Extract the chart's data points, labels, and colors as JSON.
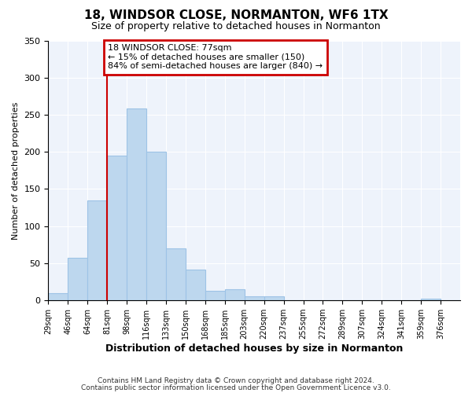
{
  "title": "18, WINDSOR CLOSE, NORMANTON, WF6 1TX",
  "subtitle": "Size of property relative to detached houses in Normanton",
  "xlabel": "Distribution of detached houses by size in Normanton",
  "ylabel": "Number of detached properties",
  "bin_labels": [
    "29sqm",
    "46sqm",
    "64sqm",
    "81sqm",
    "98sqm",
    "116sqm",
    "133sqm",
    "150sqm",
    "168sqm",
    "185sqm",
    "203sqm",
    "220sqm",
    "237sqm",
    "255sqm",
    "272sqm",
    "289sqm",
    "307sqm",
    "324sqm",
    "341sqm",
    "359sqm",
    "376sqm"
  ],
  "bar_heights": [
    10,
    57,
    135,
    195,
    258,
    200,
    70,
    41,
    13,
    15,
    6,
    5,
    0,
    0,
    0,
    0,
    0,
    0,
    0,
    2,
    0
  ],
  "bar_color": "#BDD7EE",
  "bar_edge_color": "#9DC3E6",
  "bar_edge_width": 0.8,
  "vline_position": 3,
  "vline_color": "#CC0000",
  "ylim": [
    0,
    350
  ],
  "yticks": [
    0,
    50,
    100,
    150,
    200,
    250,
    300,
    350
  ],
  "annotation_title": "18 WINDSOR CLOSE: 77sqm",
  "annotation_line1": "← 15% of detached houses are smaller (150)",
  "annotation_line2": "84% of semi-detached houses are larger (840) →",
  "annotation_box_color": "#CC0000",
  "footer_line1": "Contains HM Land Registry data © Crown copyright and database right 2024.",
  "footer_line2": "Contains public sector information licensed under the Open Government Licence v3.0.",
  "background_color": "#ffffff",
  "plot_bg_color": "#EEF3FB"
}
